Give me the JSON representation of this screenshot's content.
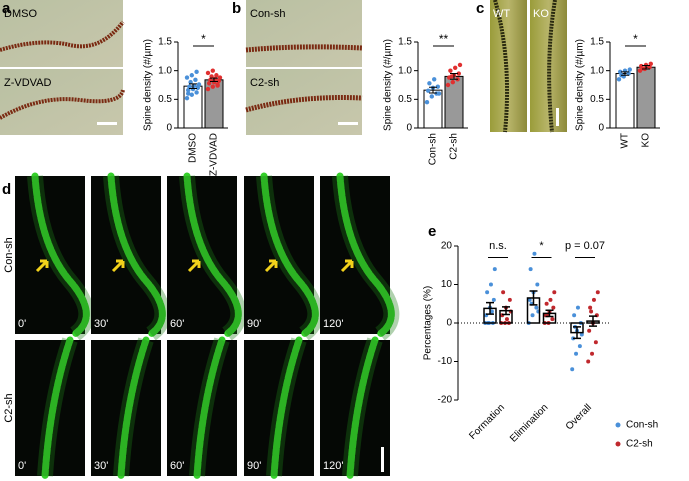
{
  "panel_labels": [
    "a",
    "b",
    "c",
    "d",
    "e"
  ],
  "image_labels": {
    "a": [
      "DMSO",
      "Z-VDVAD"
    ],
    "b": [
      "Con-sh",
      "C2-sh"
    ],
    "c": [
      "WT",
      "KO"
    ],
    "d_rows": [
      "Con-sh",
      "C2-sh"
    ],
    "d_times": [
      "0'",
      "30'",
      "60'",
      "90'",
      "120'"
    ]
  },
  "chart_data": [
    {
      "type": "bar",
      "ylabel": "Spine density (#/µm)",
      "categories": [
        "DMSO",
        "Z-VDVAD"
      ],
      "values": [
        0.73,
        0.84
      ],
      "errors": [
        0.04,
        0.03
      ],
      "colors": [
        "#ffffff",
        "#999999"
      ],
      "point_colors": [
        "#4a90d9",
        "#e03030"
      ],
      "points": [
        [
          0.52,
          0.58,
          0.62,
          0.66,
          0.68,
          0.7,
          0.72,
          0.74,
          0.76,
          0.8,
          0.84,
          0.88,
          0.92,
          0.98,
          0.6
        ],
        [
          0.68,
          0.72,
          0.76,
          0.78,
          0.8,
          0.82,
          0.84,
          0.86,
          0.88,
          0.9,
          0.92,
          0.96,
          1.0,
          0.74
        ]
      ],
      "annotation": "*",
      "ylim": [
        0,
        1.5
      ],
      "yticks": [
        0,
        0.5,
        {
          "value": 1,
          "label": "1.0"
        },
        1.5
      ]
    },
    {
      "type": "bar",
      "ylabel": "Spine density (#/µm)",
      "categories": [
        "Con-sh",
        "C2-sh"
      ],
      "values": [
        0.66,
        0.9
      ],
      "errors": [
        0.05,
        0.05
      ],
      "colors": [
        "#ffffff",
        "#999999"
      ],
      "point_colors": [
        "#4a90d9",
        "#e03030"
      ],
      "points": [
        [
          0.45,
          0.55,
          0.6,
          0.65,
          0.7,
          0.72,
          0.78,
          0.85,
          0.6
        ],
        [
          0.75,
          0.8,
          0.85,
          0.88,
          0.92,
          0.95,
          1.0,
          1.05,
          1.1,
          0.9
        ]
      ],
      "annotation": "**",
      "ylim": [
        0,
        1.5
      ],
      "yticks": [
        0,
        0.5,
        {
          "value": 1,
          "label": "1.0"
        },
        1.5
      ]
    },
    {
      "type": "bar",
      "ylabel": "Spine density (#/µm)",
      "categories": [
        "WT",
        "KO"
      ],
      "values": [
        0.95,
        1.06
      ],
      "errors": [
        0.03,
        0.03
      ],
      "colors": [
        "#ffffff",
        "#999999"
      ],
      "point_colors": [
        "#4a90d9",
        "#e03030"
      ],
      "points": [
        [
          0.85,
          0.9,
          0.95,
          0.98,
          1.0,
          1.02,
          0.92
        ],
        [
          1.0,
          1.03,
          1.06,
          1.08,
          1.1,
          1.12,
          1.04
        ]
      ],
      "annotation": "*",
      "ylim": [
        0,
        1.5
      ],
      "yticks": [
        0,
        0.5,
        {
          "value": 1,
          "label": "1.0"
        },
        1.5
      ]
    },
    {
      "type": "grouped_bar",
      "ylabel": "Percentages (%)",
      "categories": [
        "Formation",
        "Elimination",
        "Overall"
      ],
      "series": [
        {
          "name": "Con-sh",
          "color": "#4a90d9",
          "values": [
            3.8,
            6.5,
            -2.5
          ],
          "errors": [
            1.5,
            1.8,
            1.5
          ],
          "points": [
            [
              0,
              0,
              0,
              2,
              4,
              6,
              8,
              10,
              14,
              0,
              3
            ],
            [
              0,
              2,
              4,
              6,
              8,
              10,
              14,
              18,
              3,
              5
            ],
            [
              -12,
              -8,
              -6,
              -4,
              -2,
              0,
              2,
              4,
              -3,
              -1
            ]
          ]
        },
        {
          "name": "C2-sh",
          "color": "#c0282d",
          "values": [
            3.2,
            2.5,
            0.5
          ],
          "errors": [
            1,
            0.8,
            1.3
          ],
          "points": [
            [
              0,
              0,
              0,
              2,
              4,
              6,
              8,
              1,
              3
            ],
            [
              0,
              0,
              1,
              2,
              3,
              4,
              5,
              6,
              8,
              2
            ],
            [
              -10,
              -8,
              -5,
              -2,
              0,
              2,
              4,
              6,
              8,
              3
            ]
          ]
        }
      ],
      "annotations": [
        "n.s.",
        "*",
        "p = 0.07"
      ],
      "ylim": [
        -20,
        20
      ],
      "yticks": [
        -20,
        -10,
        0,
        10,
        20
      ],
      "legend": "bottom-right"
    }
  ]
}
